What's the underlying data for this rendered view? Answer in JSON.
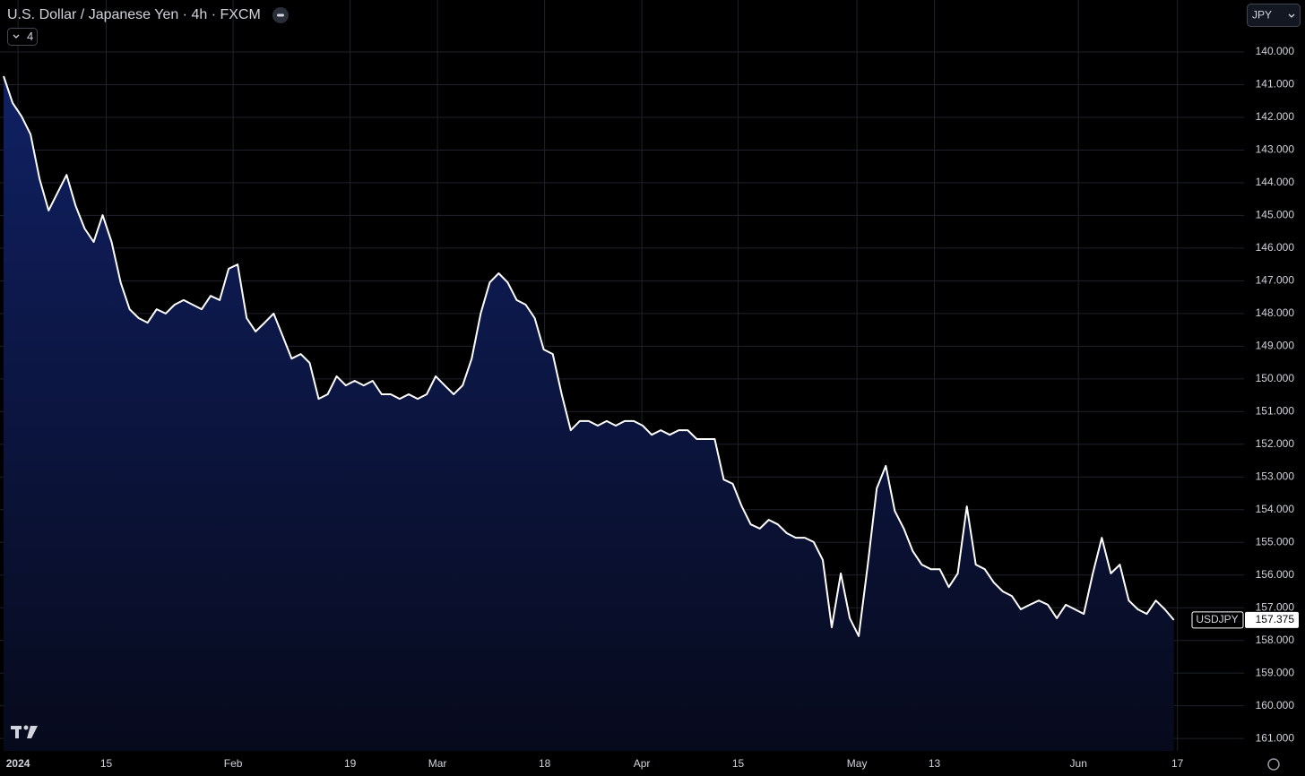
{
  "chart_data": {
    "type": "area",
    "title": "U.S. Dollar / Japanese Yen · 4h · FXCM",
    "indicator_count": "4",
    "currency": "JPY",
    "series": [
      {
        "name": "USDJPY",
        "color": "#ffffff",
        "values": [
          140.74,
          141.56,
          141.97,
          142.52,
          143.89,
          144.85,
          144.3,
          143.76,
          144.71,
          145.4,
          145.81,
          144.99,
          145.81,
          147.05,
          147.87,
          148.14,
          148.28,
          147.87,
          148.0,
          147.73,
          147.59,
          147.73,
          147.87,
          147.46,
          147.59,
          146.63,
          146.5,
          148.14,
          148.55,
          148.28,
          148.0,
          148.69,
          149.38,
          149.24,
          149.51,
          150.61,
          150.47,
          149.92,
          150.2,
          150.06,
          150.2,
          150.06,
          150.47,
          150.47,
          150.61,
          150.47,
          150.61,
          150.47,
          149.92,
          150.2,
          150.47,
          150.2,
          149.38,
          148.0,
          147.05,
          146.77,
          147.05,
          147.59,
          147.73,
          148.14,
          149.1,
          149.24,
          150.47,
          151.57,
          151.29,
          151.29,
          151.43,
          151.29,
          151.43,
          151.29,
          151.29,
          151.43,
          151.71,
          151.57,
          151.71,
          151.57,
          151.57,
          151.84,
          151.84,
          151.84,
          153.08,
          153.21,
          153.9,
          154.45,
          154.58,
          154.31,
          154.45,
          154.72,
          154.86,
          154.86,
          154.99,
          155.54,
          157.6,
          155.95,
          157.32,
          157.87,
          155.68,
          153.35,
          152.66,
          154.04,
          154.58,
          155.27,
          155.68,
          155.82,
          155.82,
          156.37,
          155.95,
          153.9,
          155.68,
          155.82,
          156.23,
          156.5,
          156.64,
          157.05,
          156.91,
          156.78,
          156.91,
          157.32,
          156.91,
          157.05,
          157.19,
          155.95,
          154.86,
          155.95,
          155.68,
          156.78,
          157.05,
          157.19,
          156.78,
          157.05,
          157.375
        ]
      }
    ],
    "x": [
      0,
      1,
      2,
      3,
      4,
      5,
      6,
      7,
      8,
      9,
      10,
      11,
      12,
      13,
      14,
      15,
      16,
      17,
      18,
      19,
      20,
      21,
      22,
      23,
      24,
      25,
      26,
      27,
      28,
      29,
      30,
      31,
      32,
      33,
      34,
      35,
      36,
      37,
      38,
      39,
      40,
      41,
      42,
      43,
      44,
      45,
      46,
      47,
      48,
      49,
      50,
      51,
      52,
      53,
      54,
      55,
      56,
      57,
      58,
      59,
      60,
      61,
      62,
      63,
      64,
      65,
      66,
      67,
      68,
      69,
      70,
      71,
      72,
      73,
      74,
      75,
      76,
      77,
      78,
      79,
      80,
      81,
      82,
      83,
      84,
      85,
      86,
      87,
      88,
      89,
      90,
      91,
      92,
      93,
      94,
      95,
      96,
      97,
      98,
      99,
      100,
      101,
      102,
      103,
      104,
      105,
      106,
      107,
      108,
      109,
      110,
      111,
      112,
      113,
      114,
      115,
      116,
      117,
      118,
      119,
      120,
      121,
      122,
      123,
      124,
      125,
      126,
      127,
      128,
      129,
      130
    ],
    "xlim": [
      -0.4,
      137.8
    ],
    "xticks": [
      {
        "value": 1.6,
        "label": "2024"
      },
      {
        "value": 11.4,
        "label": "15"
      },
      {
        "value": 25.5,
        "label": "Feb"
      },
      {
        "value": 38.5,
        "label": "19"
      },
      {
        "value": 48.2,
        "label": "Mar"
      },
      {
        "value": 60.1,
        "label": "18"
      },
      {
        "value": 70.9,
        "label": "Apr"
      },
      {
        "value": 81.6,
        "label": "15"
      },
      {
        "value": 94.8,
        "label": "May"
      },
      {
        "value": 103.4,
        "label": "13"
      },
      {
        "value": 119.4,
        "label": "Jun"
      },
      {
        "value": 130.4,
        "label": "17"
      }
    ],
    "ylim": [
      161.38,
      138.41
    ],
    "yticks": [
      {
        "value": 140,
        "label": "140.000"
      },
      {
        "value": 141,
        "label": "141.000"
      },
      {
        "value": 142,
        "label": "142.000"
      },
      {
        "value": 143,
        "label": "143.000"
      },
      {
        "value": 144,
        "label": "144.000"
      },
      {
        "value": 145,
        "label": "145.000"
      },
      {
        "value": 146,
        "label": "146.000"
      },
      {
        "value": 147,
        "label": "147.000"
      },
      {
        "value": 148,
        "label": "148.000"
      },
      {
        "value": 149,
        "label": "149.000"
      },
      {
        "value": 150,
        "label": "150.000"
      },
      {
        "value": 151,
        "label": "151.000"
      },
      {
        "value": 152,
        "label": "152.000"
      },
      {
        "value": 153,
        "label": "153.000"
      },
      {
        "value": 154,
        "label": "154.000"
      },
      {
        "value": 155,
        "label": "155.000"
      },
      {
        "value": 156,
        "label": "156.000"
      },
      {
        "value": 157,
        "label": "157.000"
      },
      {
        "value": 158,
        "label": "158.000"
      },
      {
        "value": 159,
        "label": "159.000"
      },
      {
        "value": 160,
        "label": "160.000"
      },
      {
        "value": 161,
        "label": "161.000"
      }
    ],
    "grid": true
  }
}
